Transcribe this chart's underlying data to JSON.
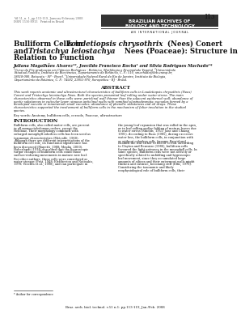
{
  "page_number": "113",
  "journal_vol": "Vol 51, n. 1, pp 113-119, January-February 2008",
  "journal_issn": "ISSN 1516-8913   Printed in Brazil",
  "journal_name_line1": "BRAZILIAN ARCHIVES OF",
  "journal_name_line2": "BIOLOGY AND TECHNOLOGY",
  "journal_subtitle": "A N   I N T E R N A T I O N A L   J O U R N A L",
  "title_line1": "Bulliform Cells in Loudetiopsis chrysothrix (Nees) Conert",
  "title_line2": "and Tristachya leiostachya Nees (Poaceae): Structure in",
  "title_line3": "Relation to Function",
  "authors": "Juliana Magalhães Alvarez¹², Joecildo Francisco Rocha¹ and Silvia Rodrigues Machado¹*",
  "affil1": "¹Curso de Pós-graduação em Ciências Biológicas - Botânica, Morfologia e Diversidade Vegetal, ²Universidade",
  "affil2": "Estadual Paulista, Instituto de Biociências, Departamento de Botânica, C. P.: 510, smachado@ibb.unesp.br,",
  "affil3": "18618-000, Botucatu - SP - Brasil. ¹Universidade Federal Rural do Rio de Janeiro, Instituto de Biologia,",
  "affil4": "Departamento de Botânica, C. P.: 74582, 23851-970, Seropédica - RJ - Brasil.",
  "abstract_title": "ABSTRACT",
  "abstract_line1": "This work reports anatomic and ultrastructural characteristics of bulliform cells in Loudetiopsis chrysothrix (Nees)",
  "abstract_line2": "Conert and Tristachya leiostachya Nees. Both the species presented leaf rolling under water stress. The main",
  "abstract_line3": "characteristics observed in these cells were: periclinal wall thinner than the adjacent epidermal wall; abundance of",
  "abstract_line4": "pectic substances in cuticular layer; sinuous anticlinal walls with ramified plasmodesmata; vacuoles formed by a",
  "abstract_line5": "developed vacuole or innumerous small vacuoles; abundance of phenolic substances and oil drops. These",
  "abstract_line6": "characteristics supported the involvement of bulliform cells in the mechanism of foliar involution in the studied",
  "abstract_line7": "species.",
  "keywords": "Key words: Anatomy, bulliform cells, cerrado, Poaceae, ultrastructure",
  "intro_title": "INTRODUCTION",
  "intro_col1_lines": [
    "Bulliform cells, also called motor cells, are present",
    "in all monocotyledonous orders, except the",
    "Helobiae. Their morphology combined with",
    "enlarged mesophyll colorless cells has been used as",
    "taxonomic characteristics (Metcalfe, 1960).",
    "Although there are different interpretations of the",
    "bulliform cell role, its functional significance has",
    "been discussed (Manetti, 1988; Moulia, 2000).",
    "Haberlandt (1914) described that the hygroscopic",
    "turgor changes of bulliform cells could cause",
    "surface-reducing movements in mature new leaf.",
    "For other authors, these cells were considered as",
    "water storage (Prat, 1948; Eleftheriou and Noitsakis,",
    "1978; Vecchia et al., 1998), and can participate in"
  ],
  "intro_col2_lines": [
    "the young leaf expansion that was rolled in the apex,",
    "or in leaf rolling and/or folding of mature leaves due",
    "to water stress (Shields, 1951; Jane and Chiang,",
    "1991). According to Ruas (1985), during excessive",
    "water loss, the bulliform cells, in conjunction with",
    "or without colorless cells, became flaccid and",
    "enabled the leaf either to fold or to roll. According",
    "to Clayton and Renvoize (1986), bulliform cells",
    "favoured the light entrance in the mesophyll cells. In",
    "some species, bulliform cells were not actively or",
    "specifically related to unfolding and hygroscopic",
    "leaf movement, since they accumulated large",
    "amounts of silicon and their outermost walls might",
    "thicken and cutinize, becoming stiff (Ellis, 1976).",
    "Considering the taxonomic and likely",
    "ecophysiological role of bulliform cells, their"
  ],
  "footnote": "* Author for correspondence",
  "footer": "Braz. arch. biol. technol. v.51 n.1: pp.113-119, Jan./Feb. 2008",
  "bg_color": "#ffffff",
  "header_bar_color": "#333333",
  "text_color": "#111111",
  "gray_text": "#666666"
}
